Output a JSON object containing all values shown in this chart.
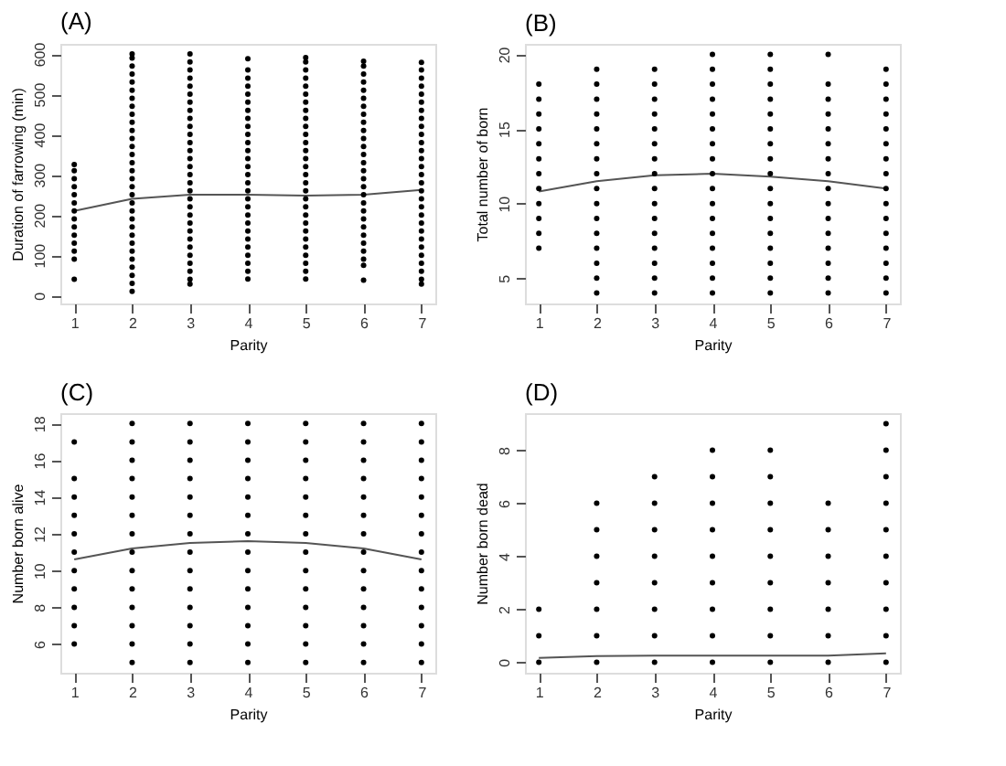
{
  "chart_data": [
    {
      "type": "scatter",
      "title": "(A)",
      "xlabel": "Parity",
      "ylabel": "Duration of farrowing (min)",
      "xlim": [
        0.76,
        7.24
      ],
      "xticks": [
        1,
        2,
        3,
        4,
        5,
        6,
        7
      ],
      "ylim": [
        -20,
        625
      ],
      "yticks": [
        0,
        100,
        200,
        300,
        400,
        500,
        600
      ],
      "grid": false,
      "marker": "circle",
      "series": [
        {
          "color": "#000000",
          "x": [
            1,
            1,
            1,
            1,
            1,
            1,
            1,
            1,
            1,
            1,
            1,
            1,
            1,
            1
          ],
          "values": [
            40,
            90,
            110,
            130,
            150,
            170,
            190,
            210,
            230,
            250,
            270,
            290,
            310,
            325
          ]
        },
        {
          "color": "#000000",
          "x": [
            2,
            2,
            2,
            2,
            2,
            2,
            2,
            2,
            2,
            2,
            2,
            2,
            2,
            2,
            2,
            2,
            2,
            2,
            2,
            2,
            2,
            2,
            2,
            2,
            2,
            2,
            2,
            2,
            2,
            2,
            2
          ],
          "values": [
            10,
            30,
            50,
            70,
            90,
            110,
            130,
            150,
            170,
            190,
            210,
            230,
            250,
            270,
            290,
            310,
            330,
            350,
            370,
            390,
            410,
            430,
            450,
            470,
            490,
            510,
            530,
            550,
            570,
            590,
            600
          ]
        },
        {
          "color": "#000000",
          "x": [
            3,
            3,
            3,
            3,
            3,
            3,
            3,
            3,
            3,
            3,
            3,
            3,
            3,
            3,
            3,
            3,
            3,
            3,
            3,
            3,
            3,
            3,
            3,
            3,
            3,
            3,
            3,
            3,
            3,
            3
          ],
          "values": [
            28,
            40,
            60,
            80,
            100,
            120,
            140,
            160,
            180,
            200,
            220,
            240,
            260,
            280,
            300,
            320,
            340,
            360,
            380,
            400,
            420,
            440,
            460,
            480,
            500,
            520,
            540,
            560,
            580,
            600
          ]
        },
        {
          "color": "#000000",
          "x": [
            4,
            4,
            4,
            4,
            4,
            4,
            4,
            4,
            4,
            4,
            4,
            4,
            4,
            4,
            4,
            4,
            4,
            4,
            4,
            4,
            4,
            4,
            4,
            4,
            4,
            4,
            4,
            4
          ],
          "values": [
            41,
            60,
            80,
            100,
            120,
            140,
            160,
            180,
            200,
            220,
            240,
            260,
            280,
            300,
            320,
            340,
            360,
            380,
            400,
            420,
            440,
            460,
            480,
            500,
            520,
            540,
            560,
            588
          ]
        },
        {
          "color": "#000000",
          "x": [
            5,
            5,
            5,
            5,
            5,
            5,
            5,
            5,
            5,
            5,
            5,
            5,
            5,
            5,
            5,
            5,
            5,
            5,
            5,
            5,
            5,
            5,
            5,
            5,
            5,
            5,
            5,
            5,
            5
          ],
          "values": [
            41,
            60,
            80,
            100,
            120,
            140,
            160,
            180,
            200,
            220,
            240,
            260,
            280,
            300,
            320,
            340,
            360,
            380,
            400,
            420,
            440,
            460,
            480,
            500,
            520,
            540,
            560,
            580,
            591
          ]
        },
        {
          "color": "#000000",
          "x": [
            6,
            6,
            6,
            6,
            6,
            6,
            6,
            6,
            6,
            6,
            6,
            6,
            6,
            6,
            6,
            6,
            6,
            6,
            6,
            6,
            6,
            6,
            6,
            6,
            6,
            6,
            6,
            6
          ],
          "values": [
            38,
            75,
            90,
            110,
            130,
            150,
            170,
            190,
            210,
            230,
            250,
            270,
            290,
            310,
            330,
            350,
            370,
            390,
            410,
            430,
            450,
            470,
            490,
            510,
            530,
            550,
            570,
            582
          ]
        },
        {
          "color": "#000000",
          "x": [
            7,
            7,
            7,
            7,
            7,
            7,
            7,
            7,
            7,
            7,
            7,
            7,
            7,
            7,
            7,
            7,
            7,
            7,
            7,
            7,
            7,
            7,
            7,
            7,
            7,
            7,
            7,
            7,
            7
          ],
          "values": [
            28,
            40,
            60,
            80,
            100,
            120,
            140,
            160,
            180,
            200,
            220,
            240,
            260,
            280,
            300,
            320,
            340,
            360,
            380,
            400,
            420,
            440,
            460,
            480,
            500,
            520,
            540,
            560,
            579
          ]
        },
        {
          "type": "line",
          "marker": "none",
          "color": "#555555",
          "x": [
            1,
            2,
            3,
            4,
            5,
            6,
            7
          ],
          "values": [
            210,
            240,
            250,
            250,
            248,
            250,
            262
          ]
        }
      ]
    },
    {
      "type": "scatter",
      "title": "(B)",
      "xlabel": "Parity",
      "ylabel": "Total number of born",
      "xlim": [
        0.76,
        7.24
      ],
      "xticks": [
        1,
        2,
        3,
        4,
        5,
        6,
        7
      ],
      "ylim": [
        3.3,
        20.7
      ],
      "yticks": [
        5,
        10,
        15,
        20
      ],
      "grid": false,
      "marker": "circle",
      "series": [
        {
          "color": "#000000",
          "x": [
            1,
            1,
            1,
            1,
            1,
            1,
            1,
            1,
            1,
            1,
            1,
            1
          ],
          "values": [
            7,
            8,
            9,
            10,
            11,
            12,
            13,
            14,
            15,
            16,
            17,
            18
          ]
        },
        {
          "color": "#000000",
          "x": [
            2,
            2,
            2,
            2,
            2,
            2,
            2,
            2,
            2,
            2,
            2,
            2,
            2,
            2,
            2,
            2
          ],
          "values": [
            4,
            5,
            6,
            7,
            8,
            9,
            10,
            11,
            12,
            13,
            14,
            15,
            16,
            17,
            18,
            19
          ]
        },
        {
          "color": "#000000",
          "x": [
            3,
            3,
            3,
            3,
            3,
            3,
            3,
            3,
            3,
            3,
            3,
            3,
            3,
            3,
            3,
            3
          ],
          "values": [
            4,
            5,
            6,
            7,
            8,
            9,
            10,
            11,
            12,
            13,
            14,
            15,
            16,
            17,
            18,
            19
          ]
        },
        {
          "color": "#000000",
          "x": [
            4,
            4,
            4,
            4,
            4,
            4,
            4,
            4,
            4,
            4,
            4,
            4,
            4,
            4,
            4,
            4,
            4
          ],
          "values": [
            4,
            5,
            6,
            7,
            8,
            9,
            10,
            11,
            12,
            13,
            14,
            15,
            16,
            17,
            18,
            19,
            20
          ]
        },
        {
          "color": "#000000",
          "x": [
            5,
            5,
            5,
            5,
            5,
            5,
            5,
            5,
            5,
            5,
            5,
            5,
            5,
            5,
            5,
            5,
            5
          ],
          "values": [
            4,
            5,
            6,
            7,
            8,
            9,
            10,
            11,
            12,
            13,
            14,
            15,
            16,
            17,
            18,
            19,
            20
          ]
        },
        {
          "color": "#000000",
          "x": [
            6,
            6,
            6,
            6,
            6,
            6,
            6,
            6,
            6,
            6,
            6,
            6,
            6,
            6,
            6,
            6
          ],
          "values": [
            4,
            5,
            6,
            7,
            8,
            9,
            10,
            11,
            12,
            13,
            14,
            15,
            16,
            17,
            18,
            20
          ]
        },
        {
          "color": "#000000",
          "x": [
            7,
            7,
            7,
            7,
            7,
            7,
            7,
            7,
            7,
            7,
            7,
            7,
            7,
            7,
            7,
            7
          ],
          "values": [
            4,
            5,
            6,
            7,
            8,
            9,
            10,
            11,
            12,
            13,
            14,
            15,
            16,
            17,
            18,
            19
          ]
        },
        {
          "type": "line",
          "marker": "none",
          "color": "#555555",
          "x": [
            1,
            2,
            3,
            4,
            5,
            6,
            7
          ],
          "values": [
            10.8,
            11.5,
            11.9,
            12.0,
            11.8,
            11.5,
            11.0
          ]
        }
      ]
    },
    {
      "type": "scatter",
      "title": "(C)",
      "xlabel": "Parity",
      "ylabel": "Number born alive",
      "xlim": [
        0.76,
        7.24
      ],
      "xticks": [
        1,
        2,
        3,
        4,
        5,
        6,
        7
      ],
      "ylim": [
        4.44,
        18.56
      ],
      "yticks": [
        6,
        8,
        10,
        12,
        14,
        16,
        18
      ],
      "grid": false,
      "marker": "circle",
      "series": [
        {
          "color": "#000000",
          "x": [
            1,
            1,
            1,
            1,
            1,
            1,
            1,
            1,
            1,
            1,
            1
          ],
          "values": [
            6,
            7,
            8,
            9,
            10,
            11,
            12,
            13,
            14,
            15,
            17
          ]
        },
        {
          "color": "#000000",
          "x": [
            2,
            2,
            2,
            2,
            2,
            2,
            2,
            2,
            2,
            2,
            2,
            2,
            2,
            2
          ],
          "values": [
            5,
            6,
            7,
            8,
            9,
            10,
            11,
            12,
            13,
            14,
            15,
            16,
            17,
            18
          ]
        },
        {
          "color": "#000000",
          "x": [
            3,
            3,
            3,
            3,
            3,
            3,
            3,
            3,
            3,
            3,
            3,
            3,
            3,
            3
          ],
          "values": [
            5,
            6,
            7,
            8,
            9,
            10,
            11,
            12,
            13,
            14,
            15,
            16,
            17,
            18
          ]
        },
        {
          "color": "#000000",
          "x": [
            4,
            4,
            4,
            4,
            4,
            4,
            4,
            4,
            4,
            4,
            4,
            4,
            4,
            4
          ],
          "values": [
            5,
            6,
            7,
            8,
            9,
            10,
            11,
            12,
            13,
            14,
            15,
            16,
            17,
            18
          ]
        },
        {
          "color": "#000000",
          "x": [
            5,
            5,
            5,
            5,
            5,
            5,
            5,
            5,
            5,
            5,
            5,
            5,
            5,
            5
          ],
          "values": [
            5,
            6,
            7,
            8,
            9,
            10,
            11,
            12,
            13,
            14,
            15,
            16,
            17,
            18
          ]
        },
        {
          "color": "#000000",
          "x": [
            6,
            6,
            6,
            6,
            6,
            6,
            6,
            6,
            6,
            6,
            6,
            6,
            6,
            6
          ],
          "values": [
            5,
            6,
            7,
            8,
            9,
            10,
            11,
            12,
            13,
            14,
            15,
            16,
            17,
            18
          ]
        },
        {
          "color": "#000000",
          "x": [
            7,
            7,
            7,
            7,
            7,
            7,
            7,
            7,
            7,
            7,
            7,
            7,
            7,
            7
          ],
          "values": [
            5,
            6,
            7,
            8,
            9,
            10,
            11,
            12,
            13,
            14,
            15,
            16,
            17,
            18
          ]
        },
        {
          "type": "line",
          "marker": "none",
          "color": "#555555",
          "x": [
            1,
            2,
            3,
            4,
            5,
            6,
            7
          ],
          "values": [
            10.6,
            11.2,
            11.5,
            11.6,
            11.5,
            11.2,
            10.6
          ]
        }
      ]
    },
    {
      "type": "scatter",
      "title": "(D)",
      "xlabel": "Parity",
      "ylabel": "Number born dead",
      "xlim": [
        0.76,
        7.24
      ],
      "xticks": [
        1,
        2,
        3,
        4,
        5,
        6,
        7
      ],
      "ylim": [
        -0.4,
        9.4
      ],
      "yticks": [
        0,
        2,
        4,
        6,
        8
      ],
      "grid": false,
      "marker": "circle",
      "series": [
        {
          "color": "#000000",
          "x": [
            1,
            1,
            1
          ],
          "values": [
            0,
            1,
            2
          ]
        },
        {
          "color": "#000000",
          "x": [
            2,
            2,
            2,
            2,
            2,
            2,
            2
          ],
          "values": [
            0,
            1,
            2,
            3,
            4,
            5,
            6
          ]
        },
        {
          "color": "#000000",
          "x": [
            3,
            3,
            3,
            3,
            3,
            3,
            3,
            3
          ],
          "values": [
            0,
            1,
            2,
            3,
            4,
            5,
            6,
            7
          ]
        },
        {
          "color": "#000000",
          "x": [
            4,
            4,
            4,
            4,
            4,
            4,
            4,
            4,
            4
          ],
          "values": [
            0,
            1,
            2,
            3,
            4,
            5,
            6,
            7,
            8
          ]
        },
        {
          "color": "#000000",
          "x": [
            5,
            5,
            5,
            5,
            5,
            5,
            5,
            5,
            5
          ],
          "values": [
            0,
            1,
            2,
            3,
            4,
            5,
            6,
            7,
            8
          ]
        },
        {
          "color": "#000000",
          "x": [
            6,
            6,
            6,
            6,
            6,
            6,
            6
          ],
          "values": [
            0,
            1,
            2,
            3,
            4,
            5,
            6
          ]
        },
        {
          "color": "#000000",
          "x": [
            7,
            7,
            7,
            7,
            7,
            7,
            7,
            7,
            7,
            7
          ],
          "values": [
            0,
            1,
            2,
            3,
            4,
            5,
            6,
            7,
            8,
            9
          ]
        },
        {
          "type": "line",
          "marker": "none",
          "color": "#555555",
          "x": [
            1,
            2,
            3,
            4,
            5,
            6,
            7
          ],
          "values": [
            0.16,
            0.23,
            0.25,
            0.25,
            0.25,
            0.25,
            0.33
          ]
        }
      ]
    }
  ]
}
